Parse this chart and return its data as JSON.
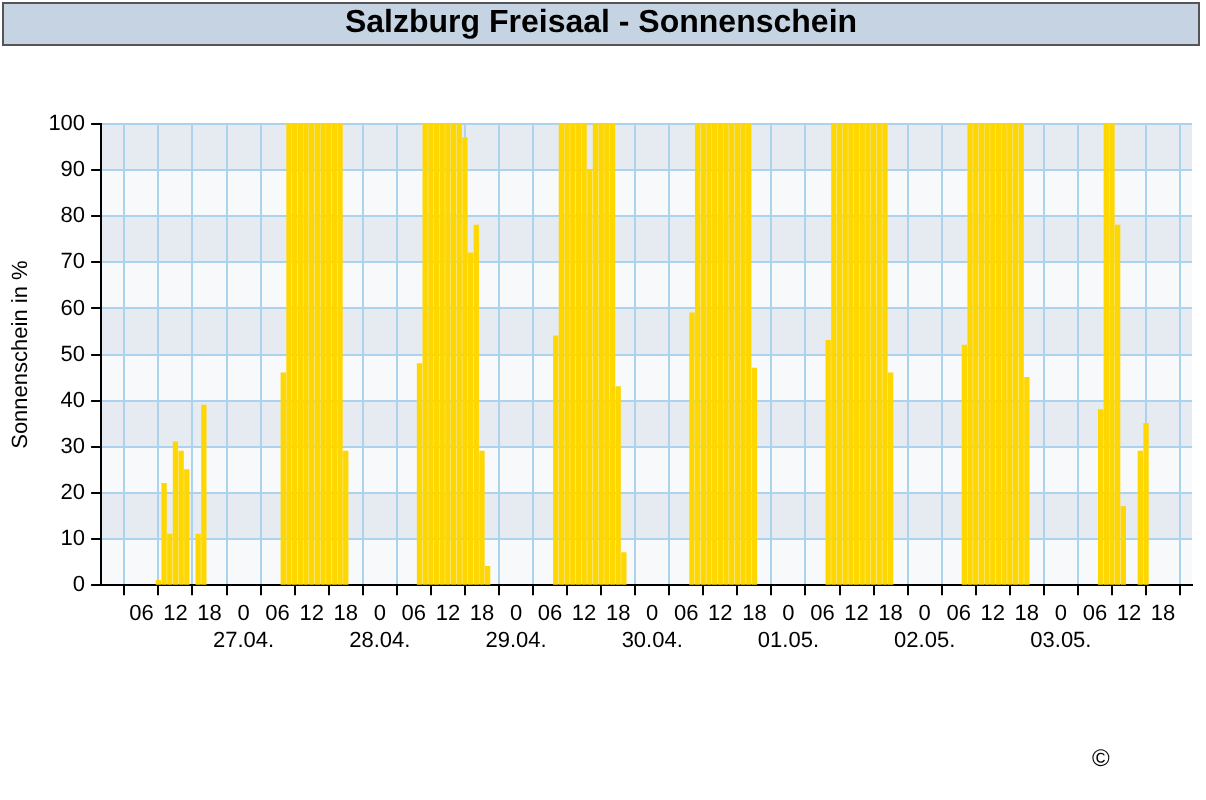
{
  "chart_data": {
    "type": "bar",
    "title": "Salzburg Freisaal - Sonnenschein",
    "ylabel": "Sonnenschein in %",
    "x": [
      "--04-26T09:00",
      "--04-26T10:00",
      "--04-26T11:00",
      "--04-26T12:00",
      "--04-26T13:00",
      "--04-26T14:00",
      "--04-26T16:00",
      "--04-26T17:00",
      "--04-27T07:00",
      "--04-27T08:00",
      "--04-27T09:00",
      "--04-27T10:00",
      "--04-27T11:00",
      "--04-27T12:00",
      "--04-27T13:00",
      "--04-27T14:00",
      "--04-27T15:00",
      "--04-27T16:00",
      "--04-27T17:00",
      "--04-27T18:00",
      "--04-28T07:00",
      "--04-28T08:00",
      "--04-28T09:00",
      "--04-28T10:00",
      "--04-28T11:00",
      "--04-28T12:00",
      "--04-28T13:00",
      "--04-28T14:00",
      "--04-28T15:00",
      "--04-28T16:00",
      "--04-28T17:00",
      "--04-28T18:00",
      "--04-28T19:00",
      "--04-29T07:00",
      "--04-29T08:00",
      "--04-29T09:00",
      "--04-29T10:00",
      "--04-29T11:00",
      "--04-29T12:00",
      "--04-29T13:00",
      "--04-29T14:00",
      "--04-29T15:00",
      "--04-29T16:00",
      "--04-29T17:00",
      "--04-29T18:00",
      "--04-29T19:00",
      "--04-30T07:00",
      "--04-30T08:00",
      "--04-30T09:00",
      "--04-30T10:00",
      "--04-30T11:00",
      "--04-30T12:00",
      "--04-30T13:00",
      "--04-30T14:00",
      "--04-30T15:00",
      "--04-30T16:00",
      "--04-30T17:00",
      "--04-30T18:00",
      "--05-01T07:00",
      "--05-01T08:00",
      "--05-01T09:00",
      "--05-01T10:00",
      "--05-01T11:00",
      "--05-01T12:00",
      "--05-01T13:00",
      "--05-01T14:00",
      "--05-01T15:00",
      "--05-01T16:00",
      "--05-01T17:00",
      "--05-01T18:00",
      "--05-02T07:00",
      "--05-02T08:00",
      "--05-02T09:00",
      "--05-02T10:00",
      "--05-02T11:00",
      "--05-02T12:00",
      "--05-02T13:00",
      "--05-02T14:00",
      "--05-02T15:00",
      "--05-02T16:00",
      "--05-02T17:00",
      "--05-02T18:00",
      "--05-03T07:00",
      "--05-03T08:00",
      "--05-03T09:00",
      "--05-03T10:00",
      "--05-03T11:00",
      "--05-03T14:00",
      "--05-03T15:00"
    ],
    "values": [
      1,
      22,
      11,
      31,
      29,
      25,
      11,
      39,
      46,
      100,
      100,
      100,
      100,
      100,
      100,
      100,
      100,
      100,
      100,
      29,
      48,
      100,
      100,
      100,
      100,
      100,
      100,
      100,
      97,
      72,
      78,
      29,
      4,
      54,
      100,
      100,
      100,
      100,
      100,
      90,
      100,
      100,
      100,
      100,
      43,
      7,
      59,
      100,
      100,
      100,
      100,
      100,
      100,
      100,
      100,
      100,
      100,
      47,
      53,
      100,
      100,
      100,
      100,
      100,
      100,
      100,
      100,
      100,
      100,
      46,
      52,
      100,
      100,
      100,
      100,
      100,
      100,
      100,
      100,
      100,
      100,
      45,
      38,
      100,
      100,
      78,
      17,
      29,
      35
    ],
    "color": "#ffd700",
    "xlim": [
      "--04-26T02:00",
      "--05-03T20:00"
    ],
    "xticks": [
      {
        "value": "--04-26T06:00",
        "label": "06"
      },
      {
        "value": "--04-26T12:00",
        "label": "12"
      },
      {
        "value": "--04-26T18:00",
        "label": "18"
      },
      {
        "value": "--04-27T00:00",
        "label": "0\n27.04."
      },
      {
        "value": "--04-27T06:00",
        "label": "06"
      },
      {
        "value": "--04-27T12:00",
        "label": "12"
      },
      {
        "value": "--04-27T18:00",
        "label": "18"
      },
      {
        "value": "--04-28T00:00",
        "label": "0\n28.04."
      },
      {
        "value": "--04-28T06:00",
        "label": "06"
      },
      {
        "value": "--04-28T12:00",
        "label": "12"
      },
      {
        "value": "--04-28T18:00",
        "label": "18"
      },
      {
        "value": "--04-29T00:00",
        "label": "0\n29.04."
      },
      {
        "value": "--04-29T06:00",
        "label": "06"
      },
      {
        "value": "--04-29T12:00",
        "label": "12"
      },
      {
        "value": "--04-29T18:00",
        "label": "18"
      },
      {
        "value": "--04-30T00:00",
        "label": "0\n30.04."
      },
      {
        "value": "--04-30T06:00",
        "label": "06"
      },
      {
        "value": "--04-30T12:00",
        "label": "12"
      },
      {
        "value": "--04-30T18:00",
        "label": "18"
      },
      {
        "value": "--05-01T00:00",
        "label": "0\n01.05."
      },
      {
        "value": "--05-01T06:00",
        "label": "06"
      },
      {
        "value": "--05-01T12:00",
        "label": "12"
      },
      {
        "value": "--05-01T18:00",
        "label": "18"
      },
      {
        "value": "--05-02T00:00",
        "label": "0\n02.05."
      },
      {
        "value": "--05-02T06:00",
        "label": "06"
      },
      {
        "value": "--05-02T12:00",
        "label": "12"
      },
      {
        "value": "--05-02T18:00",
        "label": "18"
      },
      {
        "value": "--05-03T00:00",
        "label": "0\n03.05."
      },
      {
        "value": "--05-03T06:00",
        "label": "06"
      },
      {
        "value": "--05-03T12:00",
        "label": "12"
      },
      {
        "value": "--05-03T18:00",
        "label": "18"
      }
    ],
    "ylim": [
      0,
      100
    ],
    "yticks": [
      0,
      10,
      20,
      30,
      40,
      50,
      60,
      70,
      80,
      90,
      100
    ],
    "grid": true,
    "legend": false,
    "annotations": [
      "©"
    ]
  }
}
